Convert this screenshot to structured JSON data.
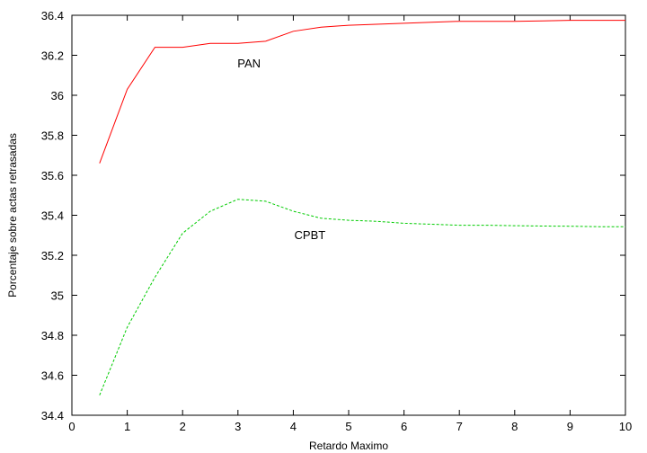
{
  "chart_data": {
    "type": "line",
    "title": "",
    "xlabel": "Retardo Maximo",
    "ylabel": "Porcentaje sobre actas retrasadas",
    "xlim": [
      0,
      10
    ],
    "ylim": [
      34.4,
      36.4
    ],
    "xticks": [
      "0",
      "1",
      "2",
      "3",
      "4",
      "5",
      "6",
      "7",
      "8",
      "9",
      "10"
    ],
    "yticks": [
      "34.4",
      "34.6",
      "34.8",
      "35",
      "35.2",
      "35.4",
      "35.6",
      "35.8",
      "36",
      "36.2",
      "36.4"
    ],
    "grid": false,
    "legend": "none",
    "series": [
      {
        "name": "PAN",
        "color": "#ff0000",
        "dash": "solid",
        "x": [
          0.5,
          1.0,
          1.5,
          2.0,
          2.5,
          3.0,
          3.5,
          4.0,
          4.5,
          5.0,
          5.5,
          6.0,
          6.5,
          7.0,
          7.5,
          8.0,
          8.5,
          9.0,
          9.5,
          10.0
        ],
        "y": [
          35.66,
          36.03,
          36.24,
          36.24,
          36.26,
          36.26,
          36.27,
          36.32,
          36.34,
          36.35,
          36.355,
          36.36,
          36.365,
          36.37,
          36.37,
          36.37,
          36.372,
          36.375,
          36.375,
          36.375
        ]
      },
      {
        "name": "CPBT",
        "color": "#00cc00",
        "dash": "dashed",
        "x": [
          0.5,
          1.0,
          1.5,
          2.0,
          2.5,
          3.0,
          3.5,
          4.0,
          4.5,
          5.0,
          5.5,
          6.0,
          6.5,
          7.0,
          7.5,
          8.0,
          8.5,
          9.0,
          9.5,
          10.0
        ],
        "y": [
          34.5,
          34.84,
          35.09,
          35.31,
          35.42,
          35.48,
          35.47,
          35.42,
          35.385,
          35.375,
          35.37,
          35.36,
          35.355,
          35.35,
          35.35,
          35.348,
          35.346,
          35.345,
          35.343,
          35.343
        ]
      }
    ],
    "annotations": [
      {
        "text": "PAN",
        "x": 3.2,
        "y": 36.14
      },
      {
        "text": "CPBT",
        "x": 4.3,
        "y": 35.28
      }
    ]
  }
}
